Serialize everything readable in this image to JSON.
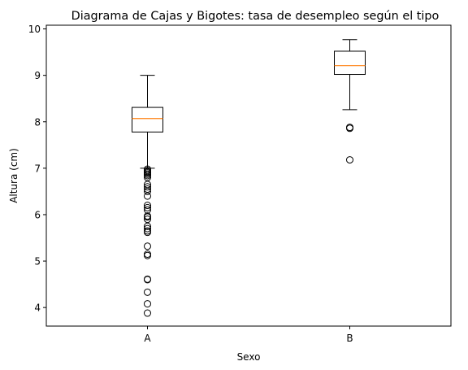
{
  "chart_data": {
    "type": "boxplot",
    "title": "Diagrama de Cajas y Bigotes: tasa de desempleo según el tipo",
    "xlabel": "Sexo",
    "ylabel": "Altura (cm)",
    "ylim": [
      3.6,
      10.08
    ],
    "yticks": [
      "4",
      "5",
      "6",
      "7",
      "8",
      "9",
      "10"
    ],
    "grid": false,
    "categories": [
      "A",
      "B"
    ],
    "boxes": [
      {
        "category": "A",
        "whisker_low": 7.0,
        "q1": 7.78,
        "median": 8.07,
        "q3": 8.31,
        "whisker_high": 9.0,
        "outliers": [
          6.98,
          6.95,
          6.92,
          6.9,
          6.87,
          6.84,
          6.8,
          6.65,
          6.6,
          6.55,
          6.5,
          6.4,
          6.2,
          6.15,
          6.1,
          5.97,
          5.95,
          5.9,
          5.75,
          5.7,
          5.65,
          5.62,
          5.32,
          5.15,
          5.12,
          4.61,
          4.6,
          4.33,
          4.08,
          3.88
        ]
      },
      {
        "category": "B",
        "whisker_low": 8.26,
        "q1": 9.02,
        "median": 9.21,
        "q3": 9.52,
        "whisker_high": 9.77,
        "outliers": [
          7.88,
          7.86,
          7.18
        ]
      }
    ],
    "colors": {
      "box": "#000000",
      "median": "#ff7f0e",
      "outlier": "#000000",
      "background": "#ffffff"
    }
  }
}
